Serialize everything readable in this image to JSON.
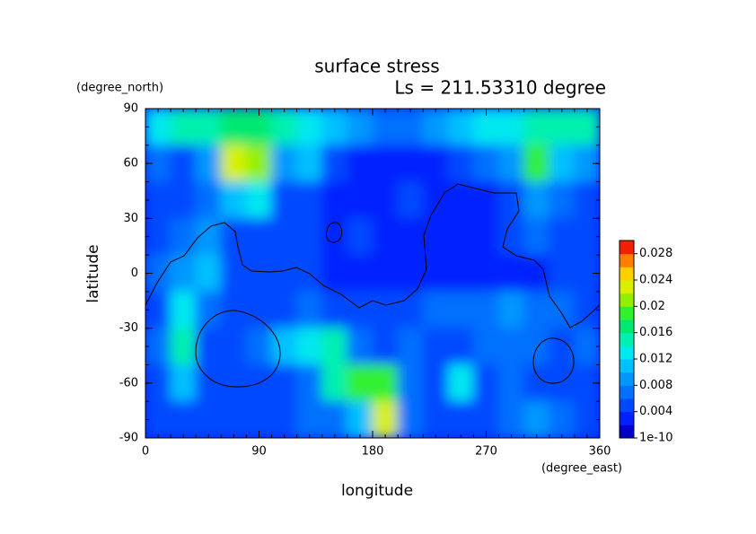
{
  "chart_data": {
    "type": "heatmap",
    "title": "surface stress",
    "subtitle": "Ls = 211.53310 degree",
    "y_unit": "(degree_north)",
    "y_label": "latitude",
    "x_label": "longitude",
    "x_unit": "(degree_east)",
    "x": [
      10,
      30,
      50,
      70,
      90,
      110,
      130,
      150,
      170,
      190,
      210,
      230,
      250,
      270,
      290,
      310,
      330,
      350
    ],
    "y": [
      80,
      60,
      40,
      20,
      0,
      -20,
      -40,
      -60,
      -80
    ],
    "z": [
      [
        0.012,
        0.014,
        0.014,
        0.016,
        0.016,
        0.014,
        0.012,
        0.01,
        0.008,
        0.006,
        0.006,
        0.008,
        0.01,
        0.012,
        0.012,
        0.014,
        0.014,
        0.014
      ],
      [
        0.006,
        0.004,
        0.008,
        0.022,
        0.02,
        0.008,
        0.01,
        0.004,
        0.002,
        0.002,
        0.002,
        0.002,
        0.004,
        0.006,
        0.008,
        0.018,
        0.01,
        0.008
      ],
      [
        0.004,
        0.004,
        0.006,
        0.01,
        0.012,
        0.004,
        0.004,
        0.002,
        0.002,
        0.002,
        0.004,
        0.002,
        0.002,
        0.002,
        0.004,
        0.008,
        0.006,
        0.004
      ],
      [
        0.004,
        0.006,
        0.008,
        0.004,
        0.004,
        0.004,
        0.004,
        0.002,
        0.004,
        0.002,
        0.002,
        0.002,
        0.002,
        0.002,
        0.004,
        0.006,
        0.004,
        0.004
      ],
      [
        0.006,
        0.008,
        0.01,
        0.004,
        0.004,
        0.004,
        0.004,
        0.002,
        0.002,
        0.002,
        0.002,
        0.002,
        0.002,
        0.002,
        0.002,
        0.002,
        0.004,
        0.004
      ],
      [
        0.004,
        0.012,
        0.006,
        0.004,
        0.004,
        0.004,
        0.006,
        0.004,
        0.004,
        0.004,
        0.004,
        0.006,
        0.006,
        0.006,
        0.008,
        0.006,
        0.006,
        0.004
      ],
      [
        0.006,
        0.014,
        0.004,
        0.004,
        0.006,
        0.01,
        0.012,
        0.014,
        0.006,
        0.004,
        0.006,
        0.004,
        0.004,
        0.006,
        0.006,
        0.006,
        0.004,
        0.006
      ],
      [
        0.004,
        0.01,
        0.004,
        0.004,
        0.004,
        0.004,
        0.006,
        0.014,
        0.018,
        0.018,
        0.006,
        0.004,
        0.012,
        0.004,
        0.006,
        0.004,
        0.004,
        0.004
      ],
      [
        0.004,
        0.004,
        0.004,
        0.004,
        0.004,
        0.004,
        0.006,
        0.006,
        0.01,
        0.022,
        0.006,
        0.004,
        0.004,
        0.004,
        0.006,
        0.008,
        0.006,
        0.004
      ]
    ],
    "xlim": [
      0,
      360
    ],
    "xticks": [
      0,
      90,
      180,
      270,
      360
    ],
    "ylim": [
      -90,
      90
    ],
    "yticks": [
      90,
      60,
      30,
      0,
      -30,
      -60,
      -90
    ],
    "clim": [
      0,
      0.03
    ],
    "cticks": [
      {
        "value": 1e-10,
        "label": "1e-10"
      },
      0.004,
      0.008,
      0.012,
      0.016,
      0.02,
      0.024,
      0.028
    ],
    "colormap": [
      "#0000c8",
      "#0020ff",
      "#0048ff",
      "#0070ff",
      "#0098ff",
      "#00c0ff",
      "#00e8f0",
      "#00f0b0",
      "#00e870",
      "#30f030",
      "#90f000",
      "#d8f000",
      "#ffd000",
      "#ff8000",
      "#f02000"
    ]
  }
}
